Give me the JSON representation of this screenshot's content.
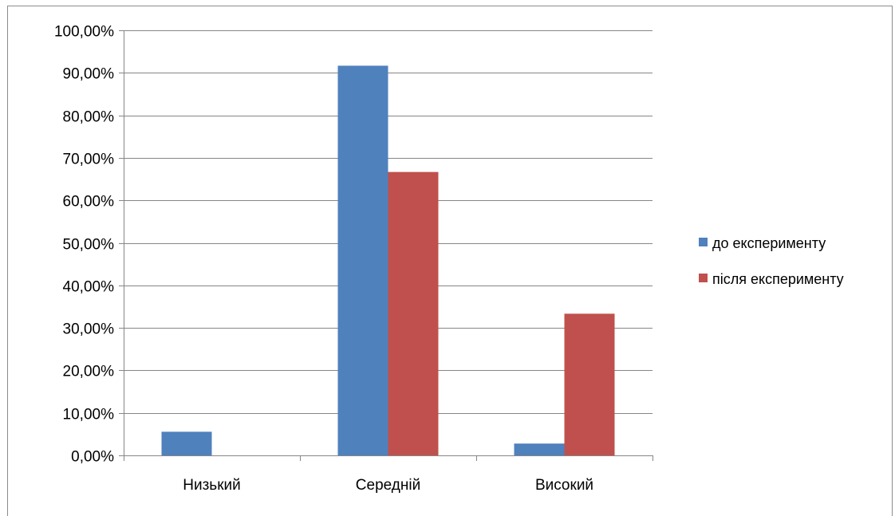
{
  "chart_data": {
    "type": "bar",
    "title": "",
    "xlabel": "",
    "ylabel": "",
    "categories": [
      "Низький",
      "Середній",
      "Високий"
    ],
    "series": [
      {
        "name": "до експерименту",
        "color": "#4F81BD",
        "values": [
          5.56,
          91.67,
          2.78
        ]
      },
      {
        "name": "після експерименту",
        "color": "#C0504D",
        "values": [
          0,
          66.67,
          33.33
        ]
      }
    ],
    "ylim": [
      0,
      100
    ],
    "yticks": [
      "0,00%",
      "10,00%",
      "20,00%",
      "30,00%",
      "40,00%",
      "50,00%",
      "60,00%",
      "70,00%",
      "80,00%",
      "90,00%",
      "100,00%"
    ],
    "grid": true,
    "legend_position": "right"
  }
}
